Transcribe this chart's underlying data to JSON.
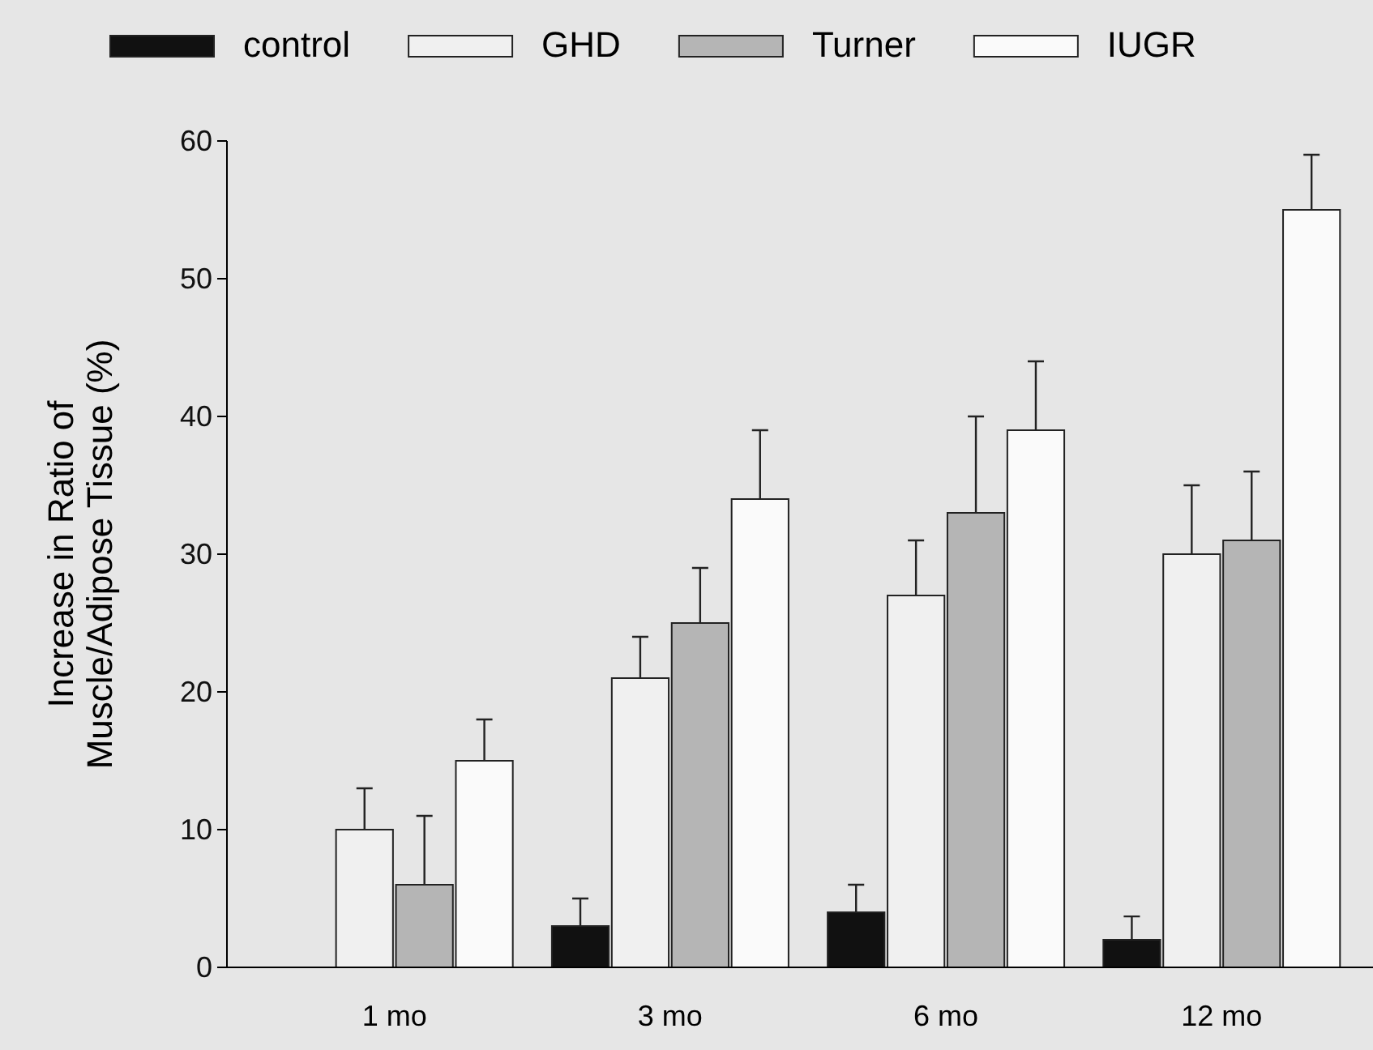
{
  "chart_data": {
    "type": "bar",
    "ylabel": "Increase in Ratio of\nMuscle/Adipose Tissue (%)",
    "categories": [
      "1 mo",
      "3 mo",
      "6 mo",
      "12 mo"
    ],
    "series": [
      {
        "name": "control",
        "color": "#111111",
        "values": [
          null,
          3,
          4,
          2
        ],
        "errors": [
          null,
          [
            3,
            5
          ],
          [
            4,
            6
          ],
          [
            2,
            3.7
          ]
        ]
      },
      {
        "name": "GHD",
        "color": "#f0f0f0",
        "values": [
          10,
          21,
          27,
          30
        ],
        "errors": [
          [
            10,
            13
          ],
          [
            21,
            24
          ],
          [
            27,
            31
          ],
          [
            30,
            35
          ]
        ]
      },
      {
        "name": "Turner",
        "color": "#b5b5b5",
        "values": [
          6,
          25,
          33,
          31
        ],
        "errors": [
          [
            6,
            11
          ],
          [
            25,
            29
          ],
          [
            33,
            40
          ],
          [
            31,
            36
          ]
        ]
      },
      {
        "name": "IUGR",
        "color": "#fafafa",
        "values": [
          15,
          34,
          39,
          55
        ],
        "errors": [
          [
            15,
            18
          ],
          [
            34,
            39
          ],
          [
            39,
            44
          ],
          [
            55,
            59
          ]
        ]
      }
    ],
    "ylim": [
      0,
      60
    ],
    "yticks": [
      0,
      10,
      20,
      30,
      40,
      50,
      60
    ],
    "legend": "top",
    "grid": false
  }
}
